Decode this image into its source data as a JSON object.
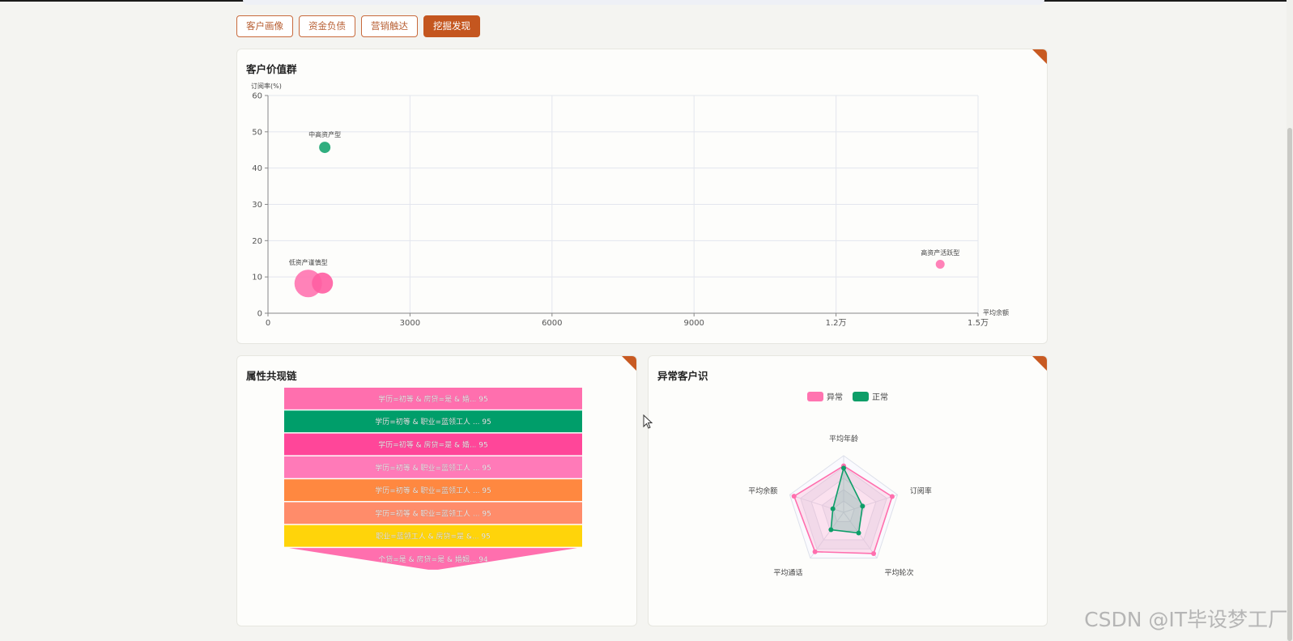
{
  "tabs": [
    {
      "label": "客户画像"
    },
    {
      "label": "资金负债"
    },
    {
      "label": "营销触达"
    },
    {
      "label": "挖掘发现",
      "active": true
    }
  ],
  "scatter_card": {
    "title": "客户价值群"
  },
  "funnel_card": {
    "title": "属性共现链"
  },
  "radar_card": {
    "title": "异常客户识"
  },
  "watermark": "CSDN @IT毕设梦工厂",
  "chart_data": [
    {
      "type": "scatter",
      "ylabel": "订阅率(%)",
      "xlabel": "平均余额",
      "xlim": [
        0,
        15000
      ],
      "ylim": [
        0,
        60
      ],
      "x_ticks": [
        "0",
        "3000",
        "6000",
        "9000",
        "1.2万",
        "1.5万"
      ],
      "y_ticks": [
        "0",
        "10",
        "20",
        "30",
        "40",
        "50",
        "60"
      ],
      "grid": true,
      "points": [
        {
          "label": "中高资产型",
          "x": 1200,
          "y": 45.7,
          "size": 10,
          "color": "#1aa571"
        },
        {
          "label": "低资产谨慎型",
          "x": 850,
          "y": 8.2,
          "size": 30,
          "color": "#ff74b0"
        },
        {
          "label": "",
          "x": 1150,
          "y": 8.3,
          "size": 22,
          "color": "#ff5ea2"
        },
        {
          "label": "高资产活跃型",
          "x": 14200,
          "y": 13.5,
          "size": 7,
          "color": "#ff74b0"
        }
      ]
    },
    {
      "type": "funnel",
      "items": [
        {
          "label": "学历=初等 & 房贷=是 & 婚... 95",
          "value": 95,
          "color": "#ff6fae"
        },
        {
          "label": "学历=初等 & 职业=蓝领工人 ... 95",
          "value": 95,
          "color": "#009e6a"
        },
        {
          "label": "学历=初等 & 房贷=是 & 婚... 95",
          "value": 95,
          "color": "#ff4699"
        },
        {
          "label": "学历=初等 & 职业=蓝领工人 ... 95",
          "value": 95,
          "color": "#ff7ab8"
        },
        {
          "label": "学历=初等 & 职业=蓝领工人 ... 95",
          "value": 95,
          "color": "#ff8840"
        },
        {
          "label": "学历=初等 & 职业=蓝领工人 ... 95",
          "value": 95,
          "color": "#ff8c6a"
        },
        {
          "label": "职业=蓝领工人 & 房贷=是 &... 95",
          "value": 95,
          "color": "#ffd40a"
        },
        {
          "label": "个贷=是 & 房贷=是 & 婚姻... 94",
          "value": 94,
          "color": "#ff6fae"
        }
      ]
    },
    {
      "type": "radar",
      "indicators": [
        "平均年龄",
        "订阅率",
        "平均轮次",
        "平均通话",
        "平均余额"
      ],
      "legend_placement": "top-center",
      "series": [
        {
          "name": "异常",
          "color": "#ff6fae",
          "values": [
            0.82,
            0.9,
            0.9,
            0.86,
            0.92
          ]
        },
        {
          "name": "正常",
          "color": "#0d9e68",
          "values": [
            0.78,
            0.35,
            0.45,
            0.38,
            0.2
          ]
        }
      ]
    }
  ]
}
